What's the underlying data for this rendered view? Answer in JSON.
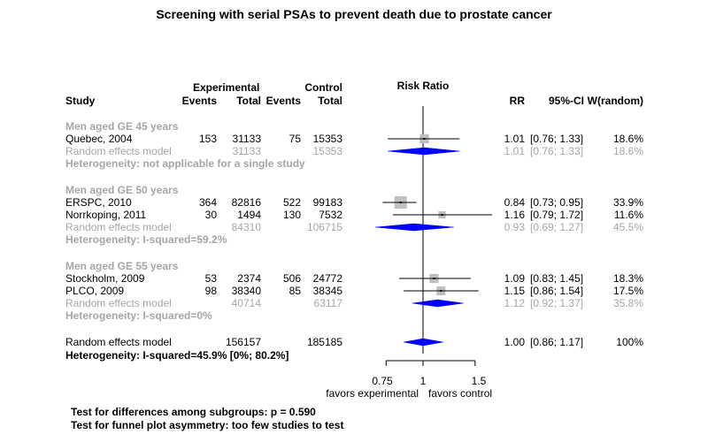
{
  "title": "Screening with serial PSAs to prevent death due to prostate cancer",
  "headers": {
    "study": "Study",
    "experimental": "Experimental",
    "control": "Control",
    "events": "Events",
    "total": "Total",
    "risk_ratio": "Risk Ratio",
    "rr": "RR",
    "ci": "95%-CI",
    "weight": "W(random)"
  },
  "groups": [
    {
      "label": "Men aged GE 45 years",
      "studies": [
        {
          "study": "Quebec, 2004",
          "e_events": "153",
          "e_total": "31133",
          "c_events": "75",
          "c_total": "15353",
          "rr": "1.01",
          "ci": "[0.76; 1.33]",
          "weight": "18.6%"
        }
      ],
      "random_label": "Random effects model",
      "random": {
        "e_total": "31133",
        "c_total": "15353",
        "rr": "1.01",
        "ci": "[0.76; 1.33]",
        "weight": "18.6%"
      },
      "heterogeneity": "Heterogeneity: not applicable for a single study"
    },
    {
      "label": "Men aged GE 50 years",
      "studies": [
        {
          "study": "ERSPC, 2010",
          "e_events": "364",
          "e_total": "82816",
          "c_events": "522",
          "c_total": "99183",
          "rr": "0.84",
          "ci": "[0.73; 0.95]",
          "weight": "33.9%"
        },
        {
          "study": "Norrkoping, 2011",
          "e_events": "30",
          "e_total": "1494",
          "c_events": "130",
          "c_total": "7532",
          "rr": "1.16",
          "ci": "[0.79; 1.72]",
          "weight": "11.6%"
        }
      ],
      "random_label": "Random effects model",
      "random": {
        "e_total": "84310",
        "c_total": "106715",
        "rr": "0.93",
        "ci": "[0.69; 1.27]",
        "weight": "45.5%"
      },
      "heterogeneity": "Heterogeneity: I-squared=59.2%"
    },
    {
      "label": "Men aged GE 55 years",
      "studies": [
        {
          "study": "Stockholm, 2009",
          "e_events": "53",
          "e_total": "2374",
          "c_events": "506",
          "c_total": "24772",
          "rr": "1.09",
          "ci": "[0.83; 1.45]",
          "weight": "18.3%"
        },
        {
          "study": "PLCO, 2009",
          "e_events": "98",
          "e_total": "38340",
          "c_events": "85",
          "c_total": "38345",
          "rr": "1.15",
          "ci": "[0.86; 1.54]",
          "weight": "17.5%"
        }
      ],
      "random_label": "Random effects model",
      "random": {
        "e_total": "40714",
        "c_total": "63117",
        "rr": "1.12",
        "ci": "[0.92; 1.37]",
        "weight": "35.8%"
      },
      "heterogeneity": "Heterogeneity: I-squared=0%"
    }
  ],
  "overall": {
    "label": "Random effects model",
    "e_total": "156157",
    "c_total": "185185",
    "rr": "1.00",
    "ci": "[0.86; 1.17]",
    "weight": "100%",
    "heterogeneity": "Heterogeneity: I-squared=45.9% [0%; 80.2%]"
  },
  "axis": {
    "ticks": [
      0.75,
      1,
      1.5
    ],
    "tick_labels": [
      "0.75",
      "1",
      "1.5"
    ],
    "left_label": "favors experimental",
    "right_label": "favors control"
  },
  "footer": {
    "subgroup_test": "Test for differences among subgroups: p = 0.590",
    "funnel_test": "Test for funnel plot asymmetry: too few studies to test"
  },
  "colors": {
    "diamond_fill": "#0000ff",
    "weight_square": "#bfbfbf",
    "subgroup_text": "#a6a6a6"
  },
  "chart_data": {
    "type": "forest",
    "title": "Screening with serial PSAs to prevent death due to prostate cancer",
    "xlabel": "Risk Ratio",
    "x_scale": "log",
    "xlim": [
      0.75,
      1.5
    ],
    "reference_line": 1,
    "studies": [
      {
        "name": "Quebec, 2004",
        "group": "Men aged GE 45 years",
        "rr": 1.01,
        "lower": 0.76,
        "upper": 1.33,
        "weight": 18.6
      },
      {
        "name": "ERSPC, 2010",
        "group": "Men aged GE 50 years",
        "rr": 0.84,
        "lower": 0.73,
        "upper": 0.95,
        "weight": 33.9
      },
      {
        "name": "Norrkoping, 2011",
        "group": "Men aged GE 50 years",
        "rr": 1.16,
        "lower": 0.79,
        "upper": 1.72,
        "weight": 11.6
      },
      {
        "name": "Stockholm, 2009",
        "group": "Men aged GE 55 years",
        "rr": 1.09,
        "lower": 0.83,
        "upper": 1.45,
        "weight": 18.3
      },
      {
        "name": "PLCO, 2009",
        "group": "Men aged GE 55 years",
        "rr": 1.15,
        "lower": 0.86,
        "upper": 1.54,
        "weight": 17.5
      }
    ],
    "subgroup_summaries": [
      {
        "group": "Men aged GE 45 years",
        "rr": 1.01,
        "lower": 0.76,
        "upper": 1.33,
        "weight": 18.6
      },
      {
        "group": "Men aged GE 50 years",
        "rr": 0.93,
        "lower": 0.69,
        "upper": 1.27,
        "weight": 45.5
      },
      {
        "group": "Men aged GE 55 years",
        "rr": 1.12,
        "lower": 0.92,
        "upper": 1.37,
        "weight": 35.8
      }
    ],
    "overall": {
      "rr": 1.0,
      "lower": 0.86,
      "upper": 1.17,
      "weight": 100
    }
  }
}
